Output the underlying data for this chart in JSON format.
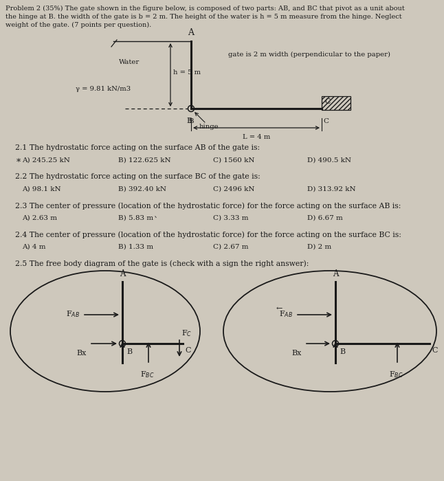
{
  "bg_color": "#cec8bc",
  "text_color": "#1a1a1a",
  "title_line1": "Problem 2 (35%) The gate shown in the figure below, is composed of two parts: AB, and BC that pivot as a unit about",
  "title_line2": "the hinge at B. the width of the gate is b = 2 m. The height of the water is h = 5 m measure from the hinge. Neglect",
  "title_line3": "weight of the gate. (7 points per question).",
  "gate_note": "gate is 2 m width (perpendicular to the paper)",
  "water_label": "Water",
  "gamma_label": "γ = 9.81 kN/m3",
  "h_label": "h = 5 m",
  "hinge_label": "hinge",
  "L_label": "L = 4 m",
  "A_label": "A",
  "B_label": "B",
  "C_label": "C",
  "q21": "2.1 The hydrostatic force acting on the surface AB of the gate is:",
  "q21_A": "A) 245.25 kN",
  "q21_B": "B) 122.625 kN",
  "q21_C": "C) 1560 kN",
  "q21_D": "D) 490.5 kN",
  "q22": "2.2 The hydrostatic force acting on the surface BC of the gate is:",
  "q22_A": "A) 98.1 kN",
  "q22_B": "B) 392.40 kN",
  "q22_C": "C) 2496 kN",
  "q22_D": "D) 313.92 kN",
  "q23": "2.3 The center of pressure (location of the hydrostatic force) for the force acting on the surface AB is:",
  "q23_A": "A) 2.63 m",
  "q23_B": "B) 5.83 m",
  "q23_C": "C) 3.33 m",
  "q23_D": "D) 6.67 m",
  "q24": "2.4 The center of pressure (location of the hydrostatic force) for the force acting on the surface BC is:",
  "q24_A": "A) 4 m",
  "q24_B": "B) 1.33 m",
  "q24_C": "C) 2.67 m",
  "q24_D": "D) 2 m",
  "q25": "2.5 The free body diagram of the gate is (check with a sign the right answer):",
  "fbd_left_labels": {
    "A": "A",
    "B": "B",
    "C": "C",
    "FAB": "F$_{AB}$",
    "Bx": "Bx",
    "FBC": "F$_{BC}$",
    "FC": "F$_C$"
  },
  "fbd_right_labels": {
    "A": "A",
    "B": "B",
    "C": "C",
    "FAB": "F$_{AB}$",
    "Bx": "Bx",
    "FBC": "F$_{BC}$"
  }
}
